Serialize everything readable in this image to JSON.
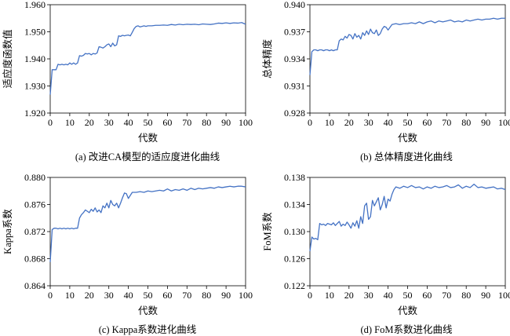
{
  "figure": {
    "background": "#ffffff",
    "line_color": "#4472c4"
  },
  "chart_data": [
    {
      "id": "a",
      "type": "line",
      "caption": "(a) 改进CA模型的适应度进化曲线",
      "xlabel": "代数",
      "ylabel": "适应度函数值",
      "xlim": [
        0,
        100
      ],
      "ylim": [
        1.92,
        1.96
      ],
      "xticks": [
        0,
        10,
        20,
        30,
        40,
        50,
        60,
        70,
        80,
        90,
        100
      ],
      "yticks": [
        1.92,
        1.93,
        1.94,
        1.95,
        1.96
      ],
      "ytick_labels": [
        "1.920",
        "1.930",
        "1.940",
        "1.950",
        "1.960"
      ],
      "series": [
        {
          "x": [
            0,
            1,
            2,
            3,
            4,
            5,
            6,
            7,
            8,
            9,
            10,
            11,
            12,
            13,
            14,
            15,
            16,
            17,
            18,
            19,
            20,
            21,
            22,
            23,
            24,
            25,
            26,
            27,
            28,
            29,
            30,
            31,
            32,
            33,
            34,
            35,
            36,
            37,
            38,
            39,
            40,
            41,
            42,
            43,
            44,
            45,
            46,
            47,
            48,
            49,
            50,
            52,
            54,
            56,
            58,
            60,
            62,
            64,
            66,
            68,
            70,
            72,
            74,
            76,
            78,
            80,
            82,
            84,
            86,
            88,
            90,
            92,
            94,
            96,
            98,
            100
          ],
          "y": [
            1.9268,
            1.936,
            1.936,
            1.936,
            1.938,
            1.9378,
            1.938,
            1.9378,
            1.938,
            1.9378,
            1.9385,
            1.938,
            1.9385,
            1.938,
            1.9385,
            1.9412,
            1.941,
            1.9413,
            1.942,
            1.9418,
            1.942,
            1.9415,
            1.942,
            1.9418,
            1.9422,
            1.9445,
            1.9443,
            1.944,
            1.9445,
            1.9452,
            1.9455,
            1.9445,
            1.9458,
            1.9448,
            1.9452,
            1.9485,
            1.9483,
            1.9487,
            1.9485,
            1.9487,
            1.9488,
            1.9485,
            1.9498,
            1.9512,
            1.952,
            1.9522,
            1.9518,
            1.952,
            1.9522,
            1.952,
            1.9522,
            1.9522,
            1.9524,
            1.9524,
            1.9525,
            1.9524,
            1.9527,
            1.9525,
            1.9528,
            1.9526,
            1.9528,
            1.9527,
            1.9528,
            1.9526,
            1.9529,
            1.9528,
            1.9527,
            1.9529,
            1.9532,
            1.9531,
            1.9533,
            1.9531,
            1.9533,
            1.9532,
            1.9534,
            1.9528
          ]
        }
      ]
    },
    {
      "id": "b",
      "type": "line",
      "caption": "(b) 总体精度进化曲线",
      "xlabel": "代数",
      "ylabel": "总体精度",
      "xlim": [
        0,
        100
      ],
      "ylim": [
        0.928,
        0.94
      ],
      "xticks": [
        0,
        10,
        20,
        30,
        40,
        50,
        60,
        70,
        80,
        90,
        100
      ],
      "yticks": [
        0.928,
        0.931,
        0.934,
        0.937,
        0.94
      ],
      "ytick_labels": [
        "0.928",
        "0.931",
        "0.934",
        "0.937",
        "0.940"
      ],
      "series": [
        {
          "x": [
            0,
            1,
            2,
            3,
            4,
            5,
            6,
            7,
            8,
            9,
            10,
            11,
            12,
            13,
            14,
            15,
            16,
            17,
            18,
            19,
            20,
            21,
            22,
            23,
            24,
            25,
            26,
            27,
            28,
            29,
            30,
            31,
            32,
            33,
            34,
            35,
            36,
            37,
            38,
            39,
            40,
            42,
            44,
            46,
            48,
            50,
            52,
            54,
            56,
            58,
            60,
            62,
            64,
            66,
            68,
            70,
            72,
            74,
            76,
            78,
            80,
            82,
            84,
            86,
            88,
            90,
            92,
            94,
            96,
            98,
            100
          ],
          "y": [
            0.9322,
            0.9348,
            0.935,
            0.935,
            0.9349,
            0.935,
            0.935,
            0.9349,
            0.935,
            0.935,
            0.9349,
            0.935,
            0.9349,
            0.935,
            0.935,
            0.936,
            0.9362,
            0.9361,
            0.9365,
            0.9363,
            0.9367,
            0.9366,
            0.9362,
            0.9368,
            0.9364,
            0.9366,
            0.9362,
            0.9369,
            0.9366,
            0.9371,
            0.9367,
            0.9373,
            0.9369,
            0.9368,
            0.9372,
            0.9366,
            0.9368,
            0.9373,
            0.9376,
            0.9375,
            0.9372,
            0.9378,
            0.9379,
            0.9378,
            0.9379,
            0.9379,
            0.938,
            0.9379,
            0.9381,
            0.9379,
            0.9381,
            0.9382,
            0.938,
            0.9382,
            0.9381,
            0.9382,
            0.9383,
            0.9381,
            0.9382,
            0.9381,
            0.9383,
            0.9382,
            0.9383,
            0.9384,
            0.9383,
            0.9384,
            0.9384,
            0.9385,
            0.9384,
            0.9385,
            0.9385
          ]
        }
      ]
    },
    {
      "id": "c",
      "type": "line",
      "caption": "(c) Kappa系数进化曲线",
      "xlabel": "代数",
      "ylabel": "Kappa系数",
      "xlim": [
        0,
        100
      ],
      "ylim": [
        0.864,
        0.88
      ],
      "xticks": [
        0,
        10,
        20,
        30,
        40,
        50,
        60,
        70,
        80,
        90,
        100
      ],
      "yticks": [
        0.864,
        0.868,
        0.872,
        0.876,
        0.88
      ],
      "ytick_labels": [
        "0.864",
        "0.868",
        "0.872",
        "0.876",
        "0.880"
      ],
      "series": [
        {
          "x": [
            0,
            1,
            2,
            3,
            4,
            5,
            6,
            7,
            8,
            9,
            10,
            11,
            12,
            13,
            14,
            15,
            16,
            17,
            18,
            19,
            20,
            21,
            22,
            23,
            24,
            25,
            26,
            27,
            28,
            29,
            30,
            31,
            32,
            33,
            34,
            35,
            36,
            37,
            38,
            39,
            40,
            42,
            44,
            46,
            48,
            50,
            52,
            54,
            56,
            58,
            60,
            62,
            64,
            66,
            68,
            70,
            72,
            74,
            76,
            78,
            80,
            82,
            84,
            86,
            88,
            90,
            92,
            94,
            96,
            98,
            100
          ],
          "y": [
            0.8675,
            0.8723,
            0.8725,
            0.8725,
            0.8724,
            0.8725,
            0.8724,
            0.8725,
            0.8724,
            0.8725,
            0.8724,
            0.8725,
            0.8724,
            0.8725,
            0.8725,
            0.874,
            0.8745,
            0.8748,
            0.8752,
            0.875,
            0.8748,
            0.8753,
            0.875,
            0.8755,
            0.8749,
            0.8752,
            0.8748,
            0.8758,
            0.8755,
            0.8762,
            0.8755,
            0.8766,
            0.876,
            0.8758,
            0.8762,
            0.8755,
            0.8762,
            0.877,
            0.8777,
            0.8776,
            0.8769,
            0.8778,
            0.8778,
            0.8779,
            0.8778,
            0.878,
            0.8779,
            0.878,
            0.8781,
            0.878,
            0.8783,
            0.878,
            0.8782,
            0.8781,
            0.8783,
            0.8781,
            0.8784,
            0.8782,
            0.8784,
            0.8783,
            0.8784,
            0.8785,
            0.8784,
            0.8786,
            0.8785,
            0.8786,
            0.8787,
            0.8786,
            0.8787,
            0.8787,
            0.8786
          ]
        }
      ]
    },
    {
      "id": "d",
      "type": "line",
      "caption": "(d) FoM系数进化曲线",
      "xlabel": "代数",
      "ylabel": "FoM系数",
      "xlim": [
        0,
        100
      ],
      "ylim": [
        0.122,
        0.138
      ],
      "xticks": [
        0,
        10,
        20,
        30,
        40,
        50,
        60,
        70,
        80,
        90,
        100
      ],
      "yticks": [
        0.122,
        0.126,
        0.13,
        0.134,
        0.138
      ],
      "ytick_labels": [
        "0.122",
        "0.126",
        "0.130",
        "0.134",
        "0.138"
      ],
      "series": [
        {
          "x": [
            0,
            1,
            2,
            3,
            4,
            5,
            6,
            7,
            8,
            9,
            10,
            11,
            12,
            13,
            14,
            15,
            16,
            17,
            18,
            19,
            20,
            21,
            22,
            23,
            24,
            25,
            26,
            27,
            28,
            29,
            30,
            31,
            32,
            33,
            34,
            35,
            36,
            37,
            38,
            39,
            40,
            41,
            42,
            43,
            44,
            46,
            48,
            50,
            52,
            54,
            56,
            58,
            60,
            62,
            64,
            66,
            68,
            70,
            72,
            74,
            76,
            78,
            80,
            82,
            84,
            86,
            88,
            90,
            92,
            94,
            96,
            98,
            100
          ],
          "y": [
            0.1271,
            0.1292,
            0.1289,
            0.129,
            0.1288,
            0.1312,
            0.131,
            0.1311,
            0.1309,
            0.1312,
            0.1311,
            0.131,
            0.1313,
            0.1309,
            0.1312,
            0.1315,
            0.1308,
            0.1311,
            0.1309,
            0.1314,
            0.131,
            0.1305,
            0.1313,
            0.1308,
            0.1316,
            0.1305,
            0.1322,
            0.1312,
            0.1338,
            0.1342,
            0.1318,
            0.1322,
            0.1346,
            0.1338,
            0.1344,
            0.135,
            0.1332,
            0.134,
            0.1352,
            0.1335,
            0.1348,
            0.1345,
            0.1355,
            0.1362,
            0.1366,
            0.1364,
            0.1367,
            0.1365,
            0.1368,
            0.1365,
            0.1366,
            0.1363,
            0.1366,
            0.1364,
            0.1367,
            0.1365,
            0.1366,
            0.1368,
            0.1365,
            0.1366,
            0.1369,
            0.1364,
            0.1367,
            0.1365,
            0.137,
            0.1365,
            0.1366,
            0.1364,
            0.1365,
            0.1366,
            0.1363,
            0.1364,
            0.1362
          ]
        }
      ]
    }
  ]
}
